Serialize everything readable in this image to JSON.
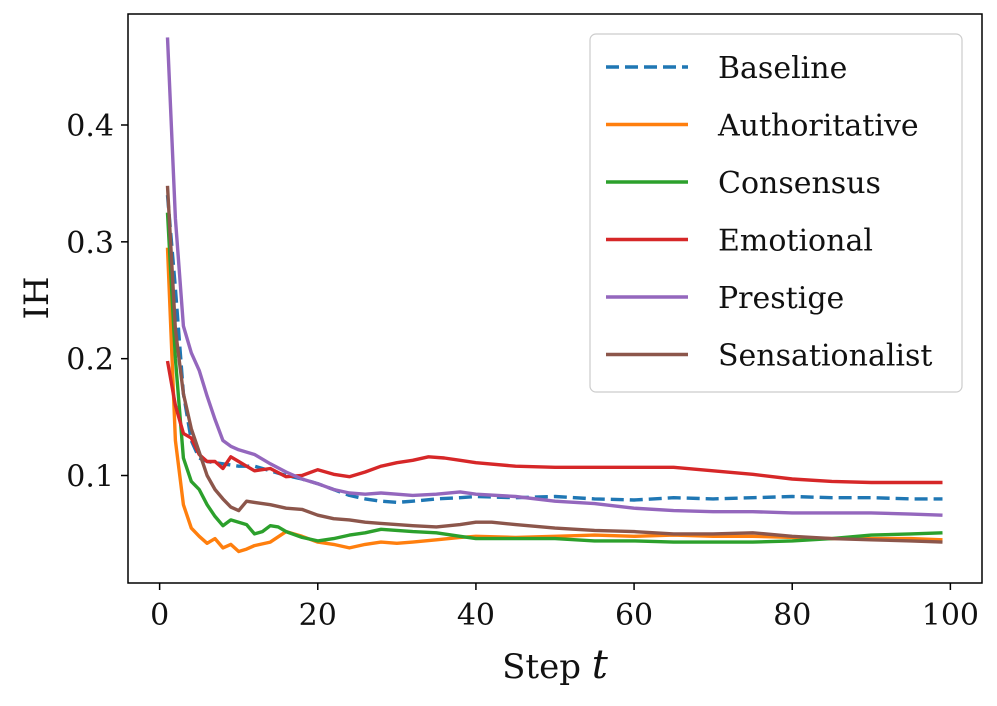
{
  "chart_data": {
    "type": "line",
    "title": "",
    "xlabel": "Step",
    "xlabel_var": "t",
    "ylabel": "IH",
    "xlim": [
      -4,
      104
    ],
    "ylim": [
      0.008,
      0.495
    ],
    "xticks": [
      0,
      20,
      40,
      60,
      80,
      100
    ],
    "xtick_labels": [
      "0",
      "20",
      "40",
      "60",
      "80",
      "100"
    ],
    "yticks": [
      0.1,
      0.2,
      0.3,
      0.4
    ],
    "ytick_labels": [
      "0.1",
      "0.2",
      "0.3",
      "0.4"
    ],
    "grid": false,
    "legend_position": "top-right",
    "series": [
      {
        "name": "Baseline",
        "color": "#1f77b4",
        "dash": "dashed",
        "x": [
          1,
          2,
          3,
          4,
          5,
          6,
          8,
          10,
          12,
          14,
          16,
          18,
          20,
          22,
          24,
          26,
          28,
          30,
          32,
          35,
          38,
          40,
          45,
          50,
          55,
          60,
          65,
          70,
          75,
          80,
          85,
          90,
          95,
          99
        ],
        "y": [
          0.34,
          0.26,
          0.17,
          0.13,
          0.115,
          0.112,
          0.11,
          0.108,
          0.108,
          0.104,
          0.1,
          0.097,
          0.093,
          0.088,
          0.083,
          0.08,
          0.078,
          0.077,
          0.078,
          0.08,
          0.081,
          0.082,
          0.081,
          0.082,
          0.08,
          0.079,
          0.081,
          0.08,
          0.081,
          0.082,
          0.081,
          0.081,
          0.08,
          0.08
        ]
      },
      {
        "name": "Authoritative",
        "color": "#ff7f0e",
        "dash": "solid",
        "x": [
          1,
          2,
          3,
          4,
          5,
          6,
          7,
          8,
          9,
          10,
          11,
          12,
          14,
          16,
          18,
          20,
          22,
          24,
          26,
          28,
          30,
          32,
          35,
          38,
          40,
          45,
          50,
          55,
          60,
          65,
          70,
          75,
          80,
          85,
          90,
          95,
          99
        ],
        "y": [
          0.295,
          0.13,
          0.075,
          0.055,
          0.048,
          0.042,
          0.046,
          0.038,
          0.041,
          0.035,
          0.037,
          0.04,
          0.043,
          0.052,
          0.048,
          0.043,
          0.041,
          0.038,
          0.041,
          0.043,
          0.042,
          0.043,
          0.045,
          0.047,
          0.048,
          0.047,
          0.048,
          0.049,
          0.048,
          0.049,
          0.048,
          0.048,
          0.047,
          0.046,
          0.046,
          0.046,
          0.045
        ]
      },
      {
        "name": "Consensus",
        "color": "#2ca02c",
        "dash": "solid",
        "x": [
          1,
          2,
          3,
          4,
          5,
          6,
          7,
          8,
          9,
          10,
          11,
          12,
          13,
          14,
          15,
          16,
          18,
          20,
          22,
          24,
          26,
          28,
          30,
          32,
          35,
          38,
          40,
          45,
          50,
          55,
          60,
          65,
          70,
          75,
          80,
          85,
          90,
          95,
          99
        ],
        "y": [
          0.325,
          0.2,
          0.115,
          0.095,
          0.088,
          0.075,
          0.065,
          0.057,
          0.062,
          0.06,
          0.058,
          0.05,
          0.052,
          0.057,
          0.056,
          0.052,
          0.047,
          0.044,
          0.046,
          0.049,
          0.051,
          0.054,
          0.053,
          0.052,
          0.051,
          0.048,
          0.046,
          0.046,
          0.046,
          0.044,
          0.044,
          0.043,
          0.043,
          0.043,
          0.044,
          0.046,
          0.049,
          0.05,
          0.051
        ]
      },
      {
        "name": "Emotional",
        "color": "#d62728",
        "dash": "solid",
        "x": [
          1,
          2,
          3,
          4,
          5,
          6,
          7,
          8,
          9,
          10,
          11,
          12,
          14,
          16,
          18,
          20,
          22,
          24,
          26,
          28,
          30,
          32,
          34,
          36,
          38,
          40,
          45,
          50,
          55,
          60,
          65,
          70,
          75,
          80,
          85,
          90,
          95,
          99
        ],
        "y": [
          0.198,
          0.16,
          0.136,
          0.132,
          0.118,
          0.112,
          0.112,
          0.106,
          0.116,
          0.112,
          0.108,
          0.104,
          0.106,
          0.099,
          0.1,
          0.105,
          0.101,
          0.099,
          0.103,
          0.108,
          0.111,
          0.113,
          0.116,
          0.115,
          0.113,
          0.111,
          0.108,
          0.107,
          0.107,
          0.107,
          0.107,
          0.104,
          0.101,
          0.097,
          0.095,
          0.094,
          0.094,
          0.094
        ]
      },
      {
        "name": "Prestige",
        "color": "#9467bd",
        "dash": "solid",
        "x": [
          1,
          2,
          3,
          4,
          5,
          6,
          7,
          8,
          9,
          10,
          12,
          14,
          16,
          18,
          20,
          22,
          24,
          26,
          28,
          30,
          32,
          35,
          38,
          40,
          45,
          50,
          55,
          60,
          65,
          70,
          75,
          80,
          85,
          90,
          95,
          99
        ],
        "y": [
          0.475,
          0.32,
          0.228,
          0.205,
          0.19,
          0.168,
          0.148,
          0.13,
          0.125,
          0.122,
          0.118,
          0.11,
          0.103,
          0.097,
          0.093,
          0.088,
          0.085,
          0.084,
          0.085,
          0.084,
          0.083,
          0.084,
          0.086,
          0.084,
          0.082,
          0.078,
          0.076,
          0.072,
          0.07,
          0.069,
          0.069,
          0.068,
          0.068,
          0.068,
          0.067,
          0.066
        ]
      },
      {
        "name": "Sensationalist",
        "color": "#8c564b",
        "dash": "solid",
        "x": [
          1,
          2,
          3,
          4,
          5,
          6,
          7,
          8,
          9,
          10,
          11,
          12,
          14,
          16,
          18,
          20,
          22,
          24,
          26,
          28,
          30,
          32,
          35,
          38,
          40,
          42,
          45,
          50,
          55,
          60,
          65,
          70,
          75,
          80,
          85,
          90,
          95,
          99
        ],
        "y": [
          0.348,
          0.225,
          0.17,
          0.14,
          0.12,
          0.1,
          0.088,
          0.08,
          0.073,
          0.07,
          0.078,
          0.077,
          0.075,
          0.072,
          0.071,
          0.066,
          0.063,
          0.062,
          0.06,
          0.059,
          0.058,
          0.057,
          0.056,
          0.058,
          0.06,
          0.06,
          0.058,
          0.055,
          0.053,
          0.052,
          0.05,
          0.05,
          0.051,
          0.048,
          0.046,
          0.045,
          0.044,
          0.043
        ]
      }
    ]
  }
}
